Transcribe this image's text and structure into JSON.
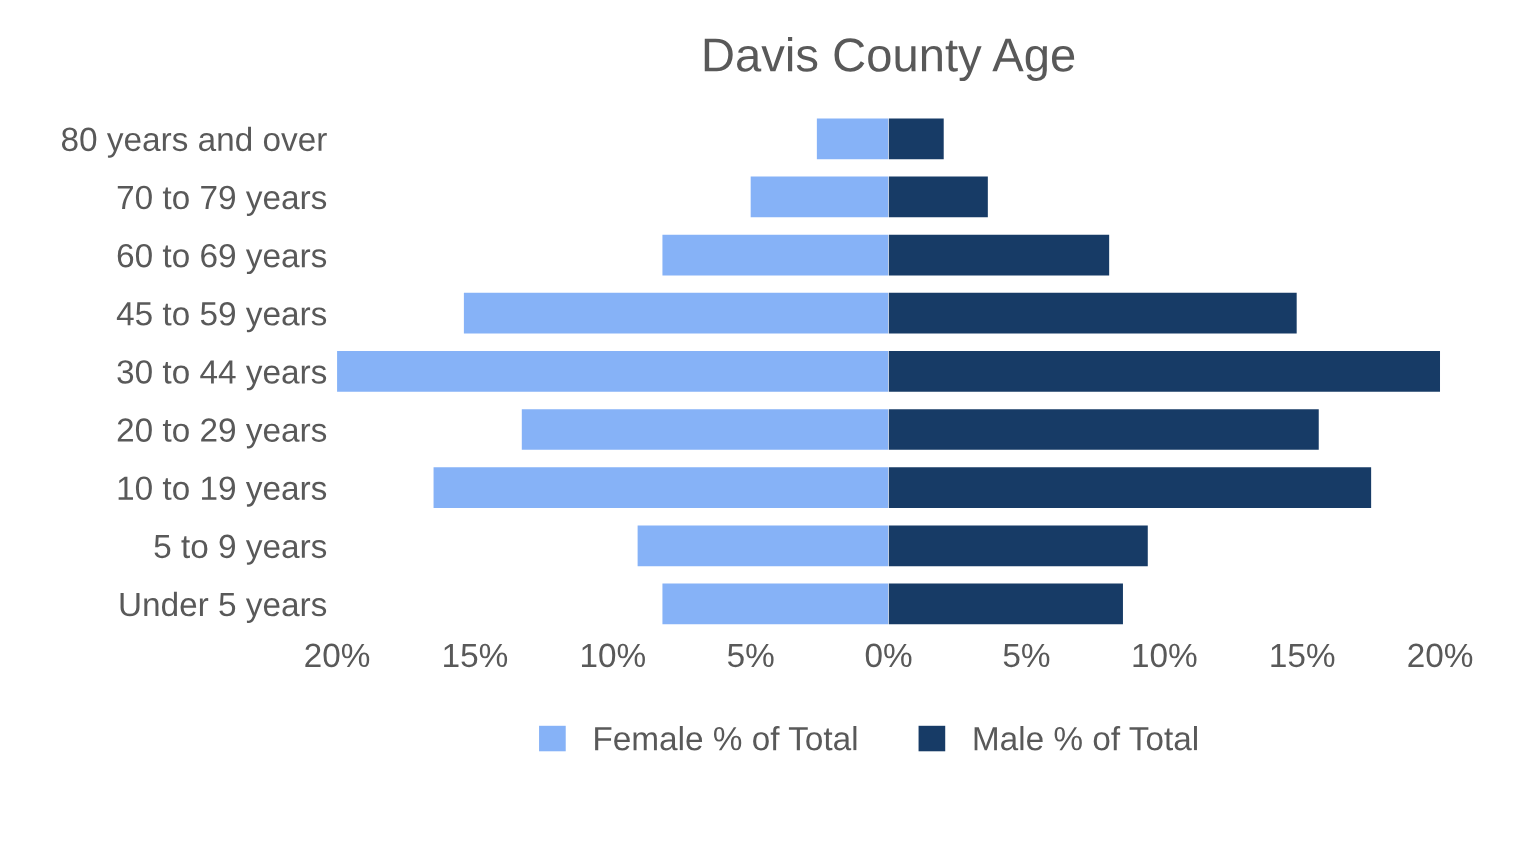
{
  "chart_data": [
    {
      "type": "bar",
      "orientation": "horizontal",
      "title": "Davis County Age",
      "categories": [
        "80 years and over",
        "70 to 79 years",
        "60 to 69 years",
        "45 to 59 years",
        "30 to 44 years",
        "20 to 29 years",
        "10 to 19 years",
        "5 to 9 years",
        "Under 5 years"
      ],
      "series": [
        {
          "name": "Female % of Total",
          "color": "#86b2f7",
          "values": [
            2.6,
            5.0,
            8.2,
            15.4,
            20.0,
            13.3,
            16.5,
            9.1,
            8.2
          ]
        }
      ],
      "xlim": [
        20,
        0
      ],
      "xticks": [
        {
          "value": 20,
          "label": "20%"
        },
        {
          "value": 15,
          "label": "15%"
        },
        {
          "value": 10,
          "label": "10%"
        },
        {
          "value": 5,
          "label": "5%"
        },
        {
          "value": 0,
          "label": null
        }
      ],
      "grid": false,
      "legend": "bottom"
    },
    {
      "type": "bar",
      "orientation": "horizontal",
      "categories": [
        null,
        null,
        null,
        null,
        null,
        null,
        null,
        null,
        null
      ],
      "series": [
        {
          "name": "Male % of Total",
          "color": "#173b66",
          "values": [
            2.0,
            3.6,
            8.0,
            14.8,
            20.0,
            15.6,
            17.5,
            9.4,
            8.5
          ]
        }
      ],
      "xlim": [
        0,
        20
      ],
      "xticks": [
        {
          "value": 0,
          "label": "0%"
        },
        {
          "value": 5,
          "label": "5%"
        },
        {
          "value": 10,
          "label": "10%"
        },
        {
          "value": 15,
          "label": "15%"
        },
        {
          "value": 20,
          "label": "20%"
        }
      ],
      "tick_labels": "x",
      "grid": false,
      "legend": "bottom"
    }
  ]
}
